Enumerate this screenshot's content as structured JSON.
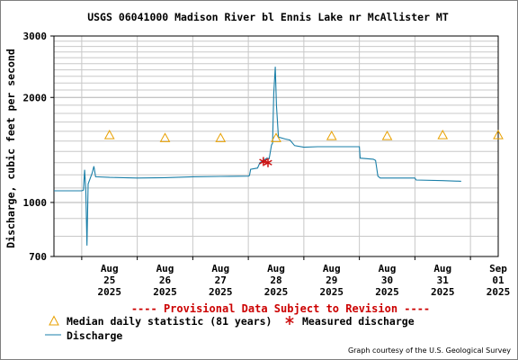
{
  "chart_data": {
    "type": "line",
    "title": "USGS 06041000 Madison River bl Ennis Lake nr McAllister MT",
    "ylabel": "Discharge, cubic feet per second",
    "xlabel": "",
    "y_scale": "log",
    "ylim": [
      700,
      3000
    ],
    "y_ticks": [
      {
        "value": 700,
        "label": "700"
      },
      {
        "value": 1000,
        "label": "1000"
      },
      {
        "value": 2000,
        "label": "2000"
      },
      {
        "value": 3000,
        "label": "3000"
      }
    ],
    "x_ticks": [
      {
        "date": "2025-08-25",
        "month": "Aug",
        "day": "25",
        "year": "2025"
      },
      {
        "date": "2025-08-26",
        "month": "Aug",
        "day": "26",
        "year": "2025"
      },
      {
        "date": "2025-08-27",
        "month": "Aug",
        "day": "27",
        "year": "2025"
      },
      {
        "date": "2025-08-28",
        "month": "Aug",
        "day": "28",
        "year": "2025"
      },
      {
        "date": "2025-08-29",
        "month": "Aug",
        "day": "29",
        "year": "2025"
      },
      {
        "date": "2025-08-30",
        "month": "Aug",
        "day": "30",
        "year": "2025"
      },
      {
        "date": "2025-08-31",
        "month": "Aug",
        "day": "31",
        "year": "2025"
      },
      {
        "date": "2025-09-01",
        "month": "Sep",
        "day": "01",
        "year": "2025"
      }
    ],
    "xlim": [
      "2025-08-24 12:00",
      "2025-09-01 12:00"
    ],
    "grid": true,
    "notice": "---- Provisional Data Subject to Revision ----",
    "credit": "Graph courtesy of the U.S. Geological Survey",
    "colors": {
      "discharge": "#1a7fa8",
      "median": "#e8a000",
      "measured": "#cc1111",
      "notice": "#cc0000",
      "grid": "#c8c8c8"
    },
    "series": [
      {
        "name": "Discharge",
        "kind": "line",
        "points": [
          [
            "2025-08-24 12:00",
            1080
          ],
          [
            "2025-08-25 00:00",
            1080
          ],
          [
            "2025-08-25 00:45",
            1085
          ],
          [
            "2025-08-25 01:15",
            1240
          ],
          [
            "2025-08-25 01:45",
            1085
          ],
          [
            "2025-08-25 02:15",
            752
          ],
          [
            "2025-08-25 02:45",
            1130
          ],
          [
            "2025-08-25 04:30",
            1215
          ],
          [
            "2025-08-25 05:15",
            1270
          ],
          [
            "2025-08-25 06:00",
            1185
          ],
          [
            "2025-08-25 12:00",
            1180
          ],
          [
            "2025-08-26 00:00",
            1175
          ],
          [
            "2025-08-26 12:00",
            1178
          ],
          [
            "2025-08-27 00:00",
            1185
          ],
          [
            "2025-08-27 12:00",
            1188
          ],
          [
            "2025-08-28 00:00",
            1190
          ],
          [
            "2025-08-28 00:30",
            1195
          ],
          [
            "2025-08-28 01:00",
            1245
          ],
          [
            "2025-08-28 04:00",
            1255
          ],
          [
            "2025-08-28 05:00",
            1300
          ],
          [
            "2025-08-28 08:00",
            1340
          ],
          [
            "2025-08-28 09:00",
            1335
          ],
          [
            "2025-08-28 10:00",
            1460
          ],
          [
            "2025-08-28 10:30",
            1480
          ],
          [
            "2025-08-28 11:00",
            2050
          ],
          [
            "2025-08-28 11:40",
            2450
          ],
          [
            "2025-08-28 12:10",
            1900
          ],
          [
            "2025-08-28 13:00",
            1540
          ],
          [
            "2025-08-28 16:00",
            1520
          ],
          [
            "2025-08-28 18:00",
            1510
          ],
          [
            "2025-08-28 20:00",
            1455
          ],
          [
            "2025-08-29 00:00",
            1440
          ],
          [
            "2025-08-29 06:00",
            1445
          ],
          [
            "2025-08-29 12:00",
            1445
          ],
          [
            "2025-08-30 00:00",
            1445
          ],
          [
            "2025-08-30 00:20",
            1340
          ],
          [
            "2025-08-30 06:00",
            1330
          ],
          [
            "2025-08-30 07:00",
            1320
          ],
          [
            "2025-08-30 08:00",
            1190
          ],
          [
            "2025-08-30 09:00",
            1175
          ],
          [
            "2025-08-31 00:00",
            1175
          ],
          [
            "2025-08-31 00:30",
            1160
          ],
          [
            "2025-08-31 12:00",
            1155
          ],
          [
            "2025-08-31 20:00",
            1150
          ]
        ]
      },
      {
        "name": "Median daily statistic (81 years)",
        "kind": "marker-triangle",
        "points": [
          [
            "2025-08-25 12:00",
            1560
          ],
          [
            "2025-08-26 12:00",
            1530
          ],
          [
            "2025-08-27 12:00",
            1530
          ],
          [
            "2025-08-28 12:00",
            1530
          ],
          [
            "2025-08-29 12:00",
            1550
          ],
          [
            "2025-08-30 12:00",
            1550
          ],
          [
            "2025-08-31 12:00",
            1560
          ],
          [
            "2025-09-01 12:00",
            1560
          ]
        ]
      },
      {
        "name": "Measured discharge",
        "kind": "marker-asterisk",
        "points": [
          [
            "2025-08-28 06:30",
            1310
          ],
          [
            "2025-08-28 08:30",
            1300
          ]
        ]
      }
    ],
    "legend": [
      {
        "label": "Median daily statistic (81 years)",
        "symbol": "triangle"
      },
      {
        "label": "Measured discharge",
        "symbol": "asterisk"
      },
      {
        "label": "Discharge",
        "symbol": "line"
      }
    ]
  }
}
